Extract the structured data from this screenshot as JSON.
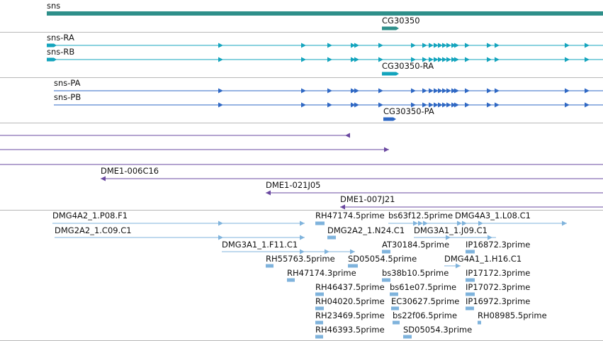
{
  "colors": {
    "gene": "#2e8f8a",
    "transcript": "#13a4bd",
    "protein": "#2f68c4",
    "clone": "#6a48a0",
    "est": "#7fb3dc",
    "separator": "#b8b8b8"
  },
  "labels": {
    "gene_sns": "sns",
    "gene_cg30350": "CG30350",
    "tx_sns_ra": "sns-RA",
    "tx_sns_rb": "sns-RB",
    "tx_cg30350_ra": "CG30350-RA",
    "prot_sns_pa": "sns-PA",
    "prot_sns_pb": "sns-PB",
    "prot_cg30350_pa": "CG30350-PA",
    "clone_006c16": "DME1-006C16",
    "clone_021j05": "DME1-021J05",
    "clone_007j21": "DME1-007J21",
    "est_1": "DMG4A2_1.P08.F1",
    "est_2": "RH47174.5prime",
    "est_3": "bs63f12.5prime",
    "est_4": "DMG4A3_1.L08.C1",
    "est_5": "DMG2A2_1.C09.C1",
    "est_6": "DMG2A2_1.N24.C1",
    "est_7": "DMG3A1_1.J09.C1",
    "est_8": "DMG3A1_1.F11.C1",
    "est_9": "AT30184.5prime",
    "est_10": "IP16872.3prime",
    "est_11": "RH55763.5prime",
    "est_12": "SD05054.5prime",
    "est_13": "DMG4A1_1.H16.C1",
    "est_14": "RH47174.3prime",
    "est_15": "bs38b10.5prime",
    "est_16": "IP17172.3prime",
    "est_17": "RH46437.5prime",
    "est_18": "bs61e07.5prime",
    "est_19": "IP17072.3prime",
    "est_20": "RH04020.5prime",
    "est_21": "EC30627.5prime",
    "est_22": "IP16972.3prime",
    "est_23": "RH23469.5prime",
    "est_24": "bs22f06.5prime",
    "est_25": "RH08985.5prime",
    "est_26": "RH46393.5prime",
    "est_27": "SD05054.3prime"
  }
}
